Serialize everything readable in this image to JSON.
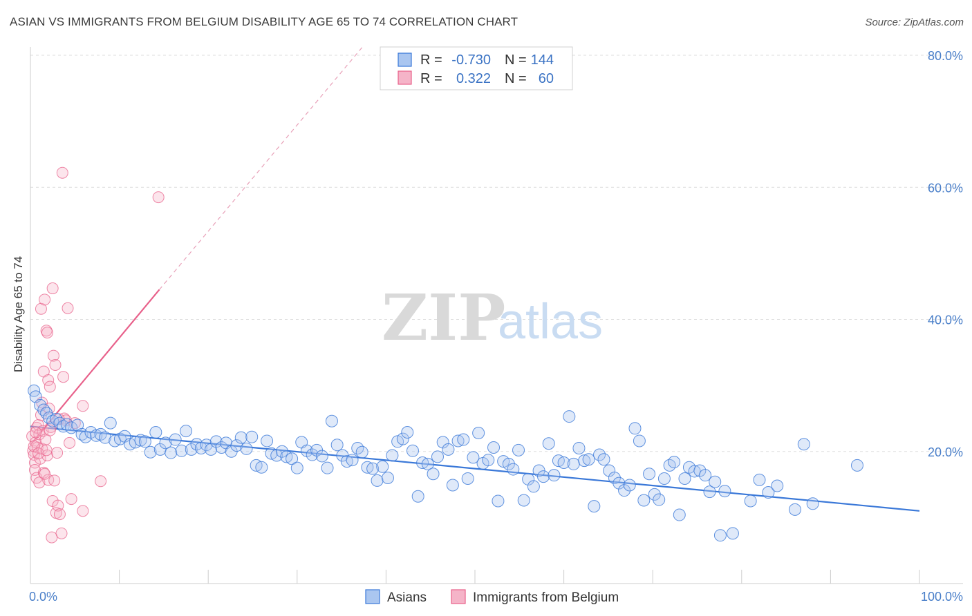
{
  "title": "ASIAN VS IMMIGRANTS FROM BELGIUM DISABILITY AGE 65 TO 74 CORRELATION CHART",
  "source": "Source: ZipAtlas.com",
  "watermark": {
    "zip": "ZIP",
    "atlas": "atlas"
  },
  "colors": {
    "blue": "#3a78d8",
    "blue_fill": "#aac6f0",
    "pink": "#e8608a",
    "pink_fill": "#f5b4c8",
    "grid": "#dddddd",
    "axis_text": "#4a7fc9"
  },
  "legend": {
    "rows": [
      {
        "r_label": "R =",
        "r_value": "-0.730",
        "n_label": "N =",
        "n_value": "144"
      },
      {
        "r_label": "R =",
        "r_value": "0.322",
        "n_label": "N =",
        "n_value": "60"
      }
    ]
  },
  "chart_data": {
    "type": "scatter",
    "title": "ASIAN VS IMMIGRANTS FROM BELGIUM DISABILITY AGE 65 TO 74 CORRELATION CHART",
    "xlabel": "",
    "ylabel": "Disability Age 65 to 74",
    "xlim": [
      0,
      100
    ],
    "ylim": [
      0,
      80
    ],
    "x_tick_labels": [
      "0.0%",
      "100.0%"
    ],
    "y_ticks": [
      20,
      40,
      60,
      80
    ],
    "y_tick_labels": [
      "20.0%",
      "40.0%",
      "60.0%",
      "80.0%"
    ],
    "grid": true,
    "legend_position": "bottom",
    "series": [
      {
        "name": "Asians",
        "color": "#3a78d8",
        "trend": {
          "x": [
            0,
            100
          ],
          "y": [
            23.8,
            11.0
          ],
          "style": "solid"
        },
        "points": [
          [
            0.4,
            29.2
          ],
          [
            0.6,
            28.3
          ],
          [
            1.1,
            27.0
          ],
          [
            1.5,
            26.3
          ],
          [
            1.8,
            25.8
          ],
          [
            2.1,
            25.1
          ],
          [
            2.5,
            24.6
          ],
          [
            2.9,
            24.9
          ],
          [
            3.3,
            24.3
          ],
          [
            3.7,
            23.8
          ],
          [
            4.1,
            24.1
          ],
          [
            4.6,
            23.6
          ],
          [
            5.3,
            24.0
          ],
          [
            5.8,
            22.6
          ],
          [
            6.2,
            22.2
          ],
          [
            6.8,
            22.9
          ],
          [
            7.4,
            22.4
          ],
          [
            7.9,
            22.6
          ],
          [
            8.4,
            22.1
          ],
          [
            9.0,
            24.3
          ],
          [
            9.5,
            21.6
          ],
          [
            10.1,
            21.9
          ],
          [
            10.6,
            22.3
          ],
          [
            11.2,
            21.1
          ],
          [
            11.8,
            21.4
          ],
          [
            12.4,
            21.7
          ],
          [
            12.9,
            21.5
          ],
          [
            13.5,
            19.9
          ],
          [
            14.1,
            22.9
          ],
          [
            14.6,
            20.3
          ],
          [
            15.2,
            21.3
          ],
          [
            15.8,
            19.8
          ],
          [
            16.3,
            21.8
          ],
          [
            17.0,
            20.1
          ],
          [
            17.5,
            23.1
          ],
          [
            18.1,
            20.3
          ],
          [
            18.7,
            21.1
          ],
          [
            19.2,
            20.5
          ],
          [
            19.8,
            21.0
          ],
          [
            20.3,
            20.3
          ],
          [
            20.9,
            21.5
          ],
          [
            21.5,
            20.6
          ],
          [
            22.0,
            21.3
          ],
          [
            22.6,
            20.0
          ],
          [
            23.2,
            20.9
          ],
          [
            23.7,
            22.1
          ],
          [
            24.3,
            20.4
          ],
          [
            24.9,
            22.2
          ],
          [
            25.4,
            17.9
          ],
          [
            26.0,
            17.6
          ],
          [
            26.6,
            21.6
          ],
          [
            27.1,
            19.7
          ],
          [
            27.7,
            19.4
          ],
          [
            28.3,
            20.0
          ],
          [
            28.8,
            19.2
          ],
          [
            29.4,
            18.9
          ],
          [
            30.0,
            17.5
          ],
          [
            30.5,
            21.4
          ],
          [
            31.1,
            20.1
          ],
          [
            31.7,
            19.5
          ],
          [
            32.2,
            20.2
          ],
          [
            32.8,
            19.3
          ],
          [
            33.4,
            17.5
          ],
          [
            33.9,
            24.6
          ],
          [
            34.5,
            21.0
          ],
          [
            35.1,
            19.4
          ],
          [
            35.6,
            18.5
          ],
          [
            36.2,
            18.7
          ],
          [
            36.8,
            20.5
          ],
          [
            37.3,
            19.9
          ],
          [
            37.9,
            17.6
          ],
          [
            38.5,
            17.4
          ],
          [
            39.0,
            15.6
          ],
          [
            39.6,
            17.7
          ],
          [
            40.2,
            16.0
          ],
          [
            40.7,
            19.4
          ],
          [
            41.3,
            21.5
          ],
          [
            41.9,
            21.9
          ],
          [
            42.4,
            22.9
          ],
          [
            43.0,
            20.1
          ],
          [
            43.6,
            13.2
          ],
          [
            44.1,
            18.3
          ],
          [
            44.7,
            18.1
          ],
          [
            45.3,
            16.6
          ],
          [
            45.8,
            19.2
          ],
          [
            46.4,
            21.4
          ],
          [
            47.0,
            20.3
          ],
          [
            47.5,
            14.9
          ],
          [
            48.1,
            21.6
          ],
          [
            48.7,
            21.8
          ],
          [
            49.2,
            15.9
          ],
          [
            49.8,
            19.1
          ],
          [
            50.4,
            22.8
          ],
          [
            50.9,
            18.2
          ],
          [
            51.5,
            18.7
          ],
          [
            52.1,
            20.6
          ],
          [
            52.6,
            12.5
          ],
          [
            53.2,
            18.5
          ],
          [
            53.8,
            18.1
          ],
          [
            54.3,
            17.3
          ],
          [
            54.9,
            20.2
          ],
          [
            55.5,
            12.6
          ],
          [
            56.0,
            15.8
          ],
          [
            56.6,
            14.7
          ],
          [
            57.2,
            17.1
          ],
          [
            57.7,
            16.2
          ],
          [
            58.3,
            21.2
          ],
          [
            58.9,
            16.4
          ],
          [
            59.4,
            18.6
          ],
          [
            60.0,
            18.3
          ],
          [
            60.6,
            25.3
          ],
          [
            61.1,
            18.1
          ],
          [
            61.7,
            20.5
          ],
          [
            62.3,
            18.6
          ],
          [
            62.8,
            18.8
          ],
          [
            63.4,
            11.7
          ],
          [
            64.0,
            19.5
          ],
          [
            64.5,
            18.8
          ],
          [
            65.1,
            17.1
          ],
          [
            65.7,
            16.0
          ],
          [
            66.2,
            15.2
          ],
          [
            66.8,
            14.1
          ],
          [
            67.4,
            14.9
          ],
          [
            68.0,
            23.5
          ],
          [
            68.5,
            21.6
          ],
          [
            69.0,
            12.6
          ],
          [
            69.6,
            16.6
          ],
          [
            70.2,
            13.5
          ],
          [
            70.7,
            12.7
          ],
          [
            71.3,
            15.9
          ],
          [
            71.9,
            17.9
          ],
          [
            72.4,
            18.4
          ],
          [
            73.0,
            10.4
          ],
          [
            73.6,
            15.9
          ],
          [
            74.1,
            17.6
          ],
          [
            74.7,
            17.0
          ],
          [
            75.3,
            17.1
          ],
          [
            75.9,
            16.4
          ],
          [
            76.4,
            13.9
          ],
          [
            77.0,
            15.4
          ],
          [
            77.6,
            7.3
          ],
          [
            78.1,
            14.0
          ],
          [
            79.0,
            7.6
          ],
          [
            81.0,
            12.5
          ],
          [
            82.0,
            15.7
          ],
          [
            83.0,
            13.8
          ],
          [
            84.0,
            14.8
          ],
          [
            86.0,
            11.2
          ],
          [
            87.0,
            21.1
          ],
          [
            88.0,
            12.1
          ],
          [
            93.0,
            17.9
          ]
        ]
      },
      {
        "name": "Immigrants from Belgium",
        "color": "#e8608a",
        "trend": {
          "x": [
            0,
            14.5
          ],
          "y": [
            21.0,
            44.5
          ],
          "style": "solid",
          "extended_x": [
            14.5,
            37.5
          ],
          "extended_y": [
            44.5,
            81.5
          ],
          "extended_style": "dashed"
        },
        "points": [
          [
            0.2,
            22.3
          ],
          [
            0.3,
            20.1
          ],
          [
            0.4,
            19.5
          ],
          [
            0.5,
            18.3
          ],
          [
            0.5,
            17.2
          ],
          [
            0.6,
            21.4
          ],
          [
            0.7,
            23.6
          ],
          [
            0.7,
            16.0
          ],
          [
            0.8,
            20.6
          ],
          [
            0.9,
            24.0
          ],
          [
            1.0,
            15.3
          ],
          [
            1.0,
            22.6
          ],
          [
            1.1,
            18.9
          ],
          [
            1.2,
            41.6
          ],
          [
            1.3,
            20.4
          ],
          [
            1.3,
            27.4
          ],
          [
            1.4,
            23.1
          ],
          [
            1.5,
            16.8
          ],
          [
            1.5,
            32.1
          ],
          [
            1.6,
            43.0
          ],
          [
            1.7,
            21.8
          ],
          [
            1.8,
            38.3
          ],
          [
            1.9,
            38.0
          ],
          [
            1.9,
            19.4
          ],
          [
            2.0,
            30.8
          ],
          [
            2.0,
            15.7
          ],
          [
            2.1,
            26.5
          ],
          [
            2.2,
            29.8
          ],
          [
            2.3,
            23.7
          ],
          [
            2.4,
            7.0
          ],
          [
            2.5,
            44.7
          ],
          [
            2.5,
            12.5
          ],
          [
            2.6,
            34.5
          ],
          [
            2.7,
            15.6
          ],
          [
            2.8,
            33.1
          ],
          [
            2.9,
            10.7
          ],
          [
            3.0,
            19.8
          ],
          [
            3.1,
            11.8
          ],
          [
            3.3,
            10.5
          ],
          [
            3.5,
            7.6
          ],
          [
            3.7,
            31.3
          ],
          [
            3.8,
            25.0
          ],
          [
            4.0,
            24.7
          ],
          [
            4.2,
            41.7
          ],
          [
            4.4,
            21.3
          ],
          [
            4.6,
            12.8
          ],
          [
            5.0,
            24.3
          ],
          [
            5.9,
            11.0
          ],
          [
            5.9,
            26.9
          ],
          [
            7.9,
            15.5
          ],
          [
            3.6,
            62.2
          ],
          [
            14.4,
            58.5
          ],
          [
            0.4,
            20.8
          ],
          [
            0.9,
            19.7
          ],
          [
            1.6,
            16.6
          ],
          [
            2.2,
            23.2
          ],
          [
            1.2,
            25.5
          ],
          [
            0.6,
            22.9
          ],
          [
            1.8,
            20.2
          ],
          [
            3.2,
            24.9
          ]
        ]
      }
    ]
  }
}
